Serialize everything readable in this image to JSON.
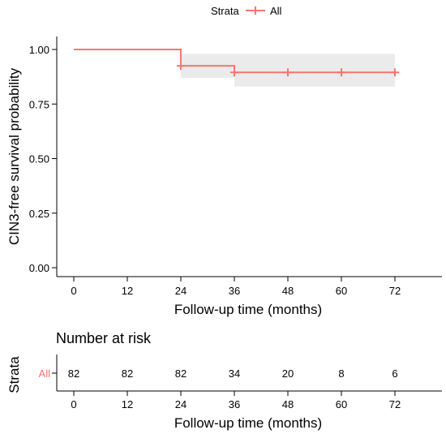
{
  "legend": {
    "title": "Strata",
    "label": "All",
    "position": "top"
  },
  "colors": {
    "curve": "#F8766D",
    "ci_band": "#EBEBEB",
    "axis": "#000000"
  },
  "chart_data": {
    "type": "line",
    "subtype": "kaplan-meier",
    "xlabel": "Follow-up time (months)",
    "ylabel": "CIN3-free survival probability",
    "xlim": [
      0,
      72
    ],
    "ylim": [
      0,
      1
    ],
    "x_ticks": [
      0,
      12,
      24,
      36,
      48,
      60,
      72
    ],
    "y_ticks": [
      0.0,
      0.25,
      0.5,
      0.75,
      1.0
    ],
    "y_tick_labels": [
      "0.00",
      "0.25",
      "0.50",
      "0.75",
      "1.00"
    ],
    "grid": false,
    "series": [
      {
        "name": "All",
        "steps": [
          {
            "x": 0,
            "y": 1.0
          },
          {
            "x": 24,
            "y": 0.925
          },
          {
            "x": 36,
            "y": 0.895
          }
        ],
        "end_x": 72,
        "censor_x": [
          24,
          36,
          48,
          60,
          72
        ],
        "ci": [
          {
            "x_start": 0,
            "x_end": 24,
            "lower": 1.0,
            "upper": 1.0
          },
          {
            "x_start": 24,
            "x_end": 36,
            "lower": 0.87,
            "upper": 0.98
          },
          {
            "x_start": 36,
            "x_end": 72,
            "lower": 0.83,
            "upper": 0.98
          }
        ]
      }
    ]
  },
  "risk_table": {
    "title": "Number at risk",
    "ylabel": "Strata",
    "row_label": "All",
    "xlabel": "Follow-up time (months)",
    "times": [
      0,
      12,
      24,
      36,
      48,
      60,
      72
    ],
    "counts": [
      82,
      82,
      82,
      34,
      20,
      8,
      6
    ]
  }
}
